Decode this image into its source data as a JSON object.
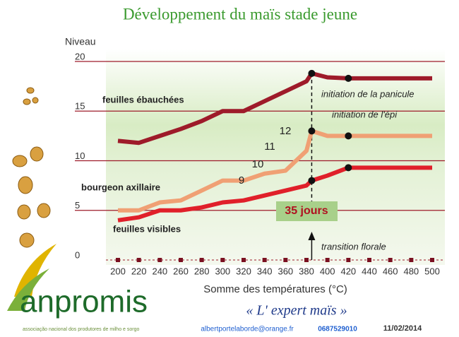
{
  "chart_data": {
    "type": "line",
    "title": "Développement du maïs stade jeune",
    "ylabel": "Niveau",
    "xlabel": "Somme des températures (°C)",
    "x": [
      200,
      220,
      240,
      260,
      280,
      300,
      320,
      340,
      360,
      380,
      385,
      400,
      420,
      440,
      460,
      480,
      500
    ],
    "series": [
      {
        "name": "feuilles ébauchées",
        "color": "#9e1b2a",
        "values": [
          12,
          11.8,
          12.5,
          13.2,
          14,
          15,
          15,
          16,
          17,
          18,
          18.8,
          18.4,
          18.3,
          18.3,
          18.3,
          18.3,
          18.3
        ]
      },
      {
        "name": "bourgeon axillaire",
        "color": "#f0a074",
        "values": [
          5,
          5,
          5.8,
          6,
          7,
          8,
          8,
          8.7,
          9,
          11,
          13,
          12.5,
          12.5,
          12.5,
          12.5,
          12.5,
          12.5
        ]
      },
      {
        "name": "feuilles visibles",
        "color": "#e0202a",
        "values": [
          4,
          4.3,
          5,
          5,
          5.3,
          5.8,
          6,
          6.5,
          7,
          7.5,
          8,
          8.5,
          9.3,
          9.3,
          9.3,
          9.3,
          9.3
        ]
      }
    ],
    "xlim": [
      200,
      500
    ],
    "ylim": [
      0,
      20
    ],
    "xticks": [
      200,
      220,
      240,
      260,
      280,
      300,
      320,
      340,
      360,
      380,
      400,
      420,
      440,
      460,
      480,
      500
    ],
    "yticks": [
      0,
      5,
      10,
      15,
      20
    ],
    "grid": true,
    "annotations": [
      "initiation de la panicule",
      "initiation de l'épi",
      "transition florale",
      "35 jours",
      "9",
      "10",
      "11",
      "12"
    ]
  },
  "footer": {
    "logo": "anpromis",
    "logo_subtitle": "associação nacional dos produtores de milho e sorgo",
    "slogan": "« L' expert maïs »",
    "email": "albertportelaborde@orange.fr",
    "phone": "0687529010",
    "date": "11/02/2014"
  }
}
